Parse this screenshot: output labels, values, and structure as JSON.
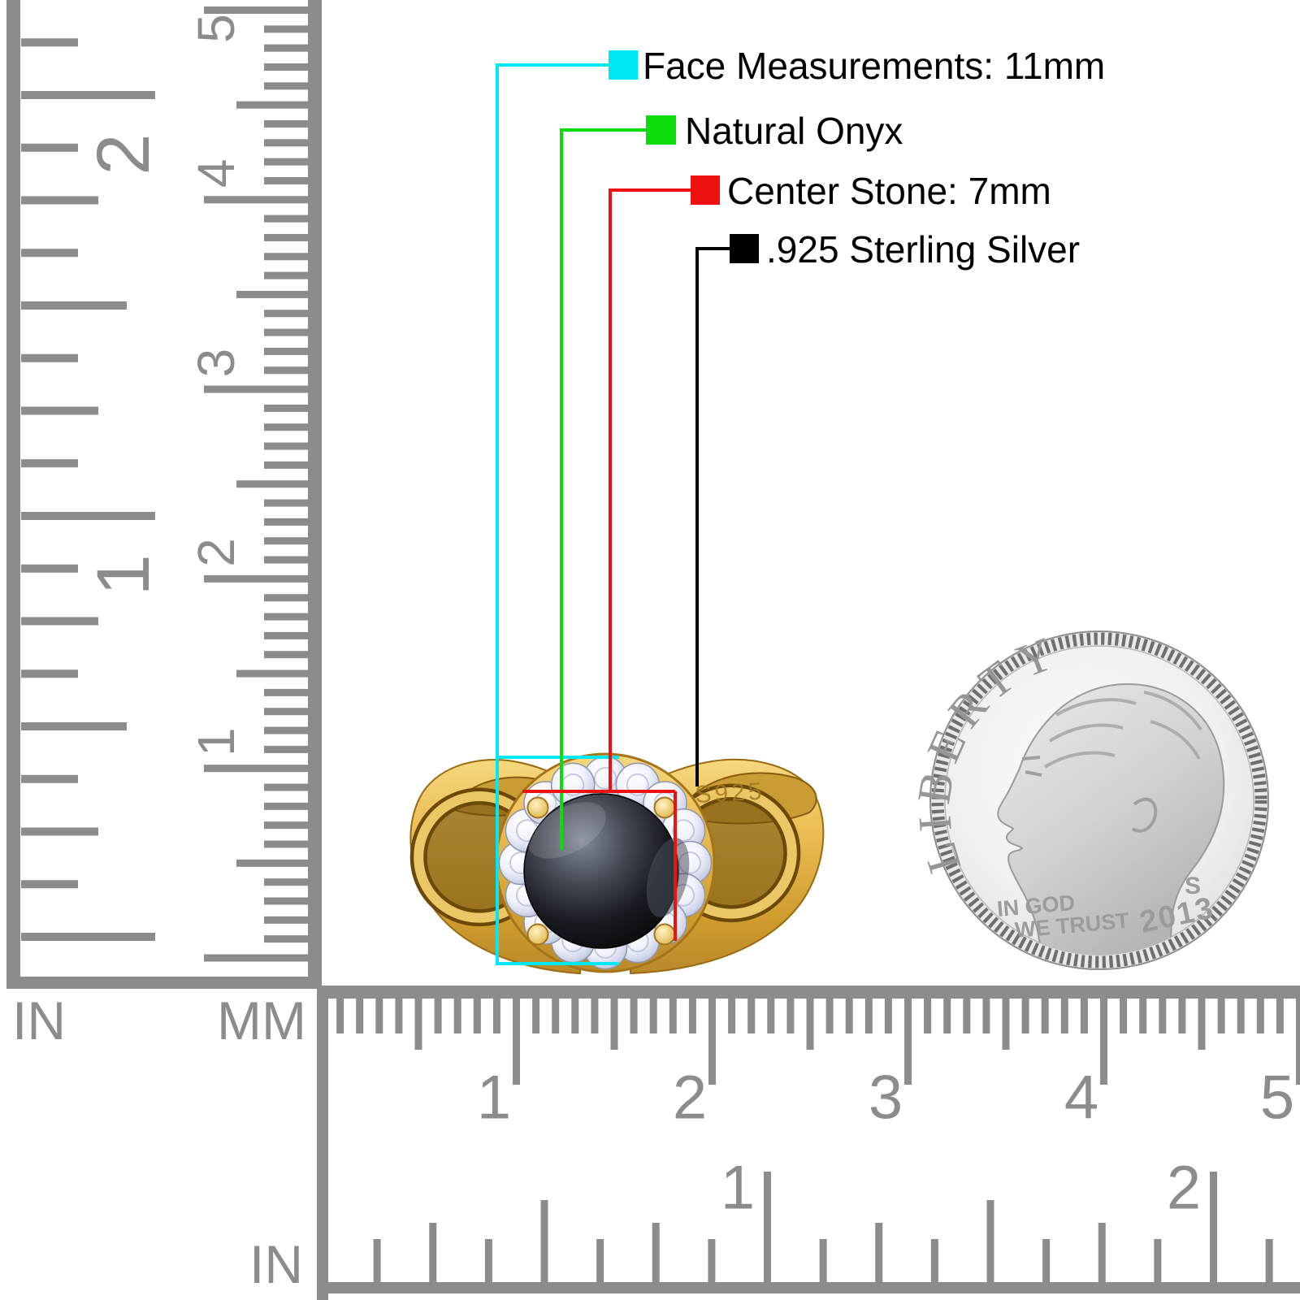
{
  "callouts": {
    "items": [
      {
        "id": "face-measurements",
        "label": "Face Measurements: 11mm",
        "color": "#00e8f5"
      },
      {
        "id": "stone-type",
        "label": "Natural Onyx",
        "color": "#0cdc0c"
      },
      {
        "id": "center-stone",
        "label": "Center Stone: 7mm",
        "color": "#ee1111"
      },
      {
        "id": "metal",
        "label": ".925 Sterling Silver",
        "color": "#000000"
      }
    ]
  },
  "ring": {
    "engraving": "S925"
  },
  "coin": {
    "legend": "LIBERTY",
    "motto_line1": "IN GOD",
    "motto_line2": "WE TRUST",
    "year": "2013",
    "mint_mark": "S"
  },
  "rulers": {
    "left": {
      "in_label": "IN",
      "mm_label": "MM",
      "inch_numbers": [
        "2",
        "1"
      ],
      "cm_numbers": [
        "5",
        "4",
        "3",
        "2",
        "1"
      ]
    },
    "bottom": {
      "in_label": "IN",
      "cm_numbers": [
        "1",
        "2",
        "3",
        "4",
        "5"
      ],
      "inch_numbers": [
        "1",
        "2"
      ]
    }
  },
  "palette": {
    "ruler_gray": "#8c8c8c",
    "gold": "#e8bb50",
    "onyx_black": "#0b0c10",
    "cz_white": "#eef0fa",
    "coin_silver": "#d9d9d9"
  }
}
